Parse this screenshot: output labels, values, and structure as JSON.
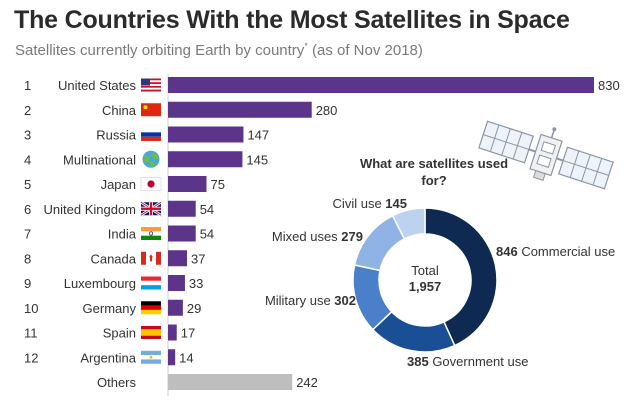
{
  "title": "The Countries With the Most Satellites in Space",
  "subtitle": {
    "main": "Satellites currently orbiting Earth by country",
    "marker": "*",
    "suffix": "(as of Nov 2018)"
  },
  "colors": {
    "bar": "#5c3489",
    "others_bar": "#bebebe",
    "donut": [
      "#0e2a52",
      "#1a4f96",
      "#4a7fca",
      "#8fb3e4",
      "#bcd2ef"
    ]
  },
  "chart_data": [
    {
      "type": "bar",
      "orientation": "horizontal",
      "ranks": [
        "1",
        "2",
        "3",
        "4",
        "5",
        "6",
        "7",
        "8",
        "9",
        "10",
        "11",
        "12",
        ""
      ],
      "categories": [
        "United States",
        "China",
        "Russia",
        "Multinational",
        "Japan",
        "United Kingdom",
        "India",
        "Canada",
        "Luxembourg",
        "Germany",
        "Spain",
        "Argentina",
        "Others"
      ],
      "flags": [
        "flag-us",
        "flag-china",
        "flag-russia",
        "globe",
        "flag-japan",
        "flag-uk",
        "flag-india",
        "flag-canada",
        "flag-luxembourg",
        "flag-germany",
        "flag-spain",
        "flag-argentina",
        ""
      ],
      "values": [
        830,
        280,
        147,
        145,
        75,
        54,
        54,
        37,
        33,
        29,
        17,
        14,
        242
      ],
      "xlim": [
        0,
        830
      ]
    },
    {
      "type": "pie",
      "title": "What are satellites used for?",
      "center_label": "Total",
      "center_value": "1,957",
      "slices": [
        {
          "label": "Commercial use",
          "value": 846,
          "value_label": "846"
        },
        {
          "label": "Government use",
          "value": 385,
          "value_label": "385"
        },
        {
          "label": "Military use",
          "value": 302,
          "value_label": "302"
        },
        {
          "label": "Mixed uses",
          "value": 279,
          "value_label": "279"
        },
        {
          "label": "Civil use",
          "value": 145,
          "value_label": "145"
        }
      ]
    }
  ]
}
